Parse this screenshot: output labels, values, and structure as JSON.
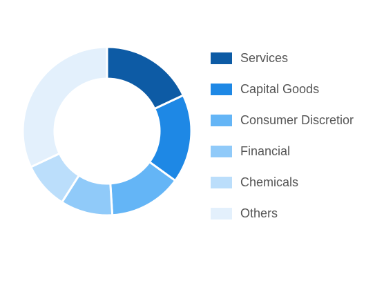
{
  "chart_data": {
    "type": "pie",
    "style": "donut",
    "legend_position": "right",
    "labels": [
      "Services",
      "Capital Goods",
      "Consumer Discretior",
      "Financial",
      "Chemicals",
      "Others"
    ],
    "values": [
      18,
      17,
      14,
      10,
      9,
      32
    ],
    "colors": [
      "#0d5ba5",
      "#1e88e5",
      "#64b5f6",
      "#90caf9",
      "#bbdefb",
      "#e3f0fc"
    ]
  }
}
